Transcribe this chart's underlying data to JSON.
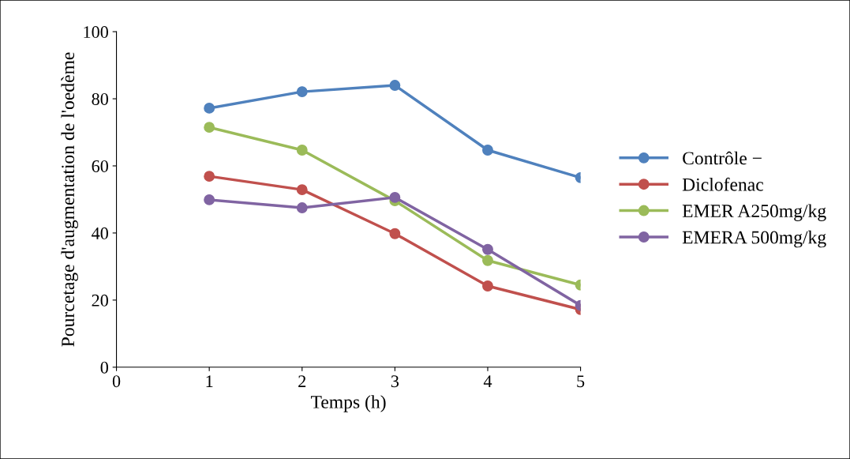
{
  "chart_data": {
    "type": "line",
    "xlabel": "Temps (h)",
    "ylabel": "Pourcetage d'augmentation de l'oedème",
    "x": [
      1,
      2,
      3,
      4,
      5
    ],
    "series": [
      {
        "name": "Contrôle −",
        "color": "#4f81bd",
        "values": [
          77.2,
          82.1,
          84,
          64.7,
          56.5
        ]
      },
      {
        "name": "Diclofenac",
        "color": "#c0504d",
        "values": [
          56.9,
          52.9,
          39.8,
          24.2,
          17.2
        ]
      },
      {
        "name": "EMER A250mg/kg",
        "color": "#9bbb59",
        "values": [
          71.5,
          64.7,
          49.6,
          31.8,
          24.5
        ]
      },
      {
        "name": "EMERA 500mg/kg",
        "color": "#8064a2",
        "values": [
          49.9,
          47.5,
          50.6,
          35.1,
          18.4
        ]
      }
    ],
    "xlim": [
      0,
      5
    ],
    "xticks": [
      0,
      1,
      2,
      3,
      4,
      5
    ],
    "ylim": [
      0,
      100
    ],
    "yticks": [
      0,
      20,
      40,
      60,
      80,
      100
    ],
    "grid": false,
    "legend": "right",
    "marker": "circle",
    "line_style": "solid"
  }
}
